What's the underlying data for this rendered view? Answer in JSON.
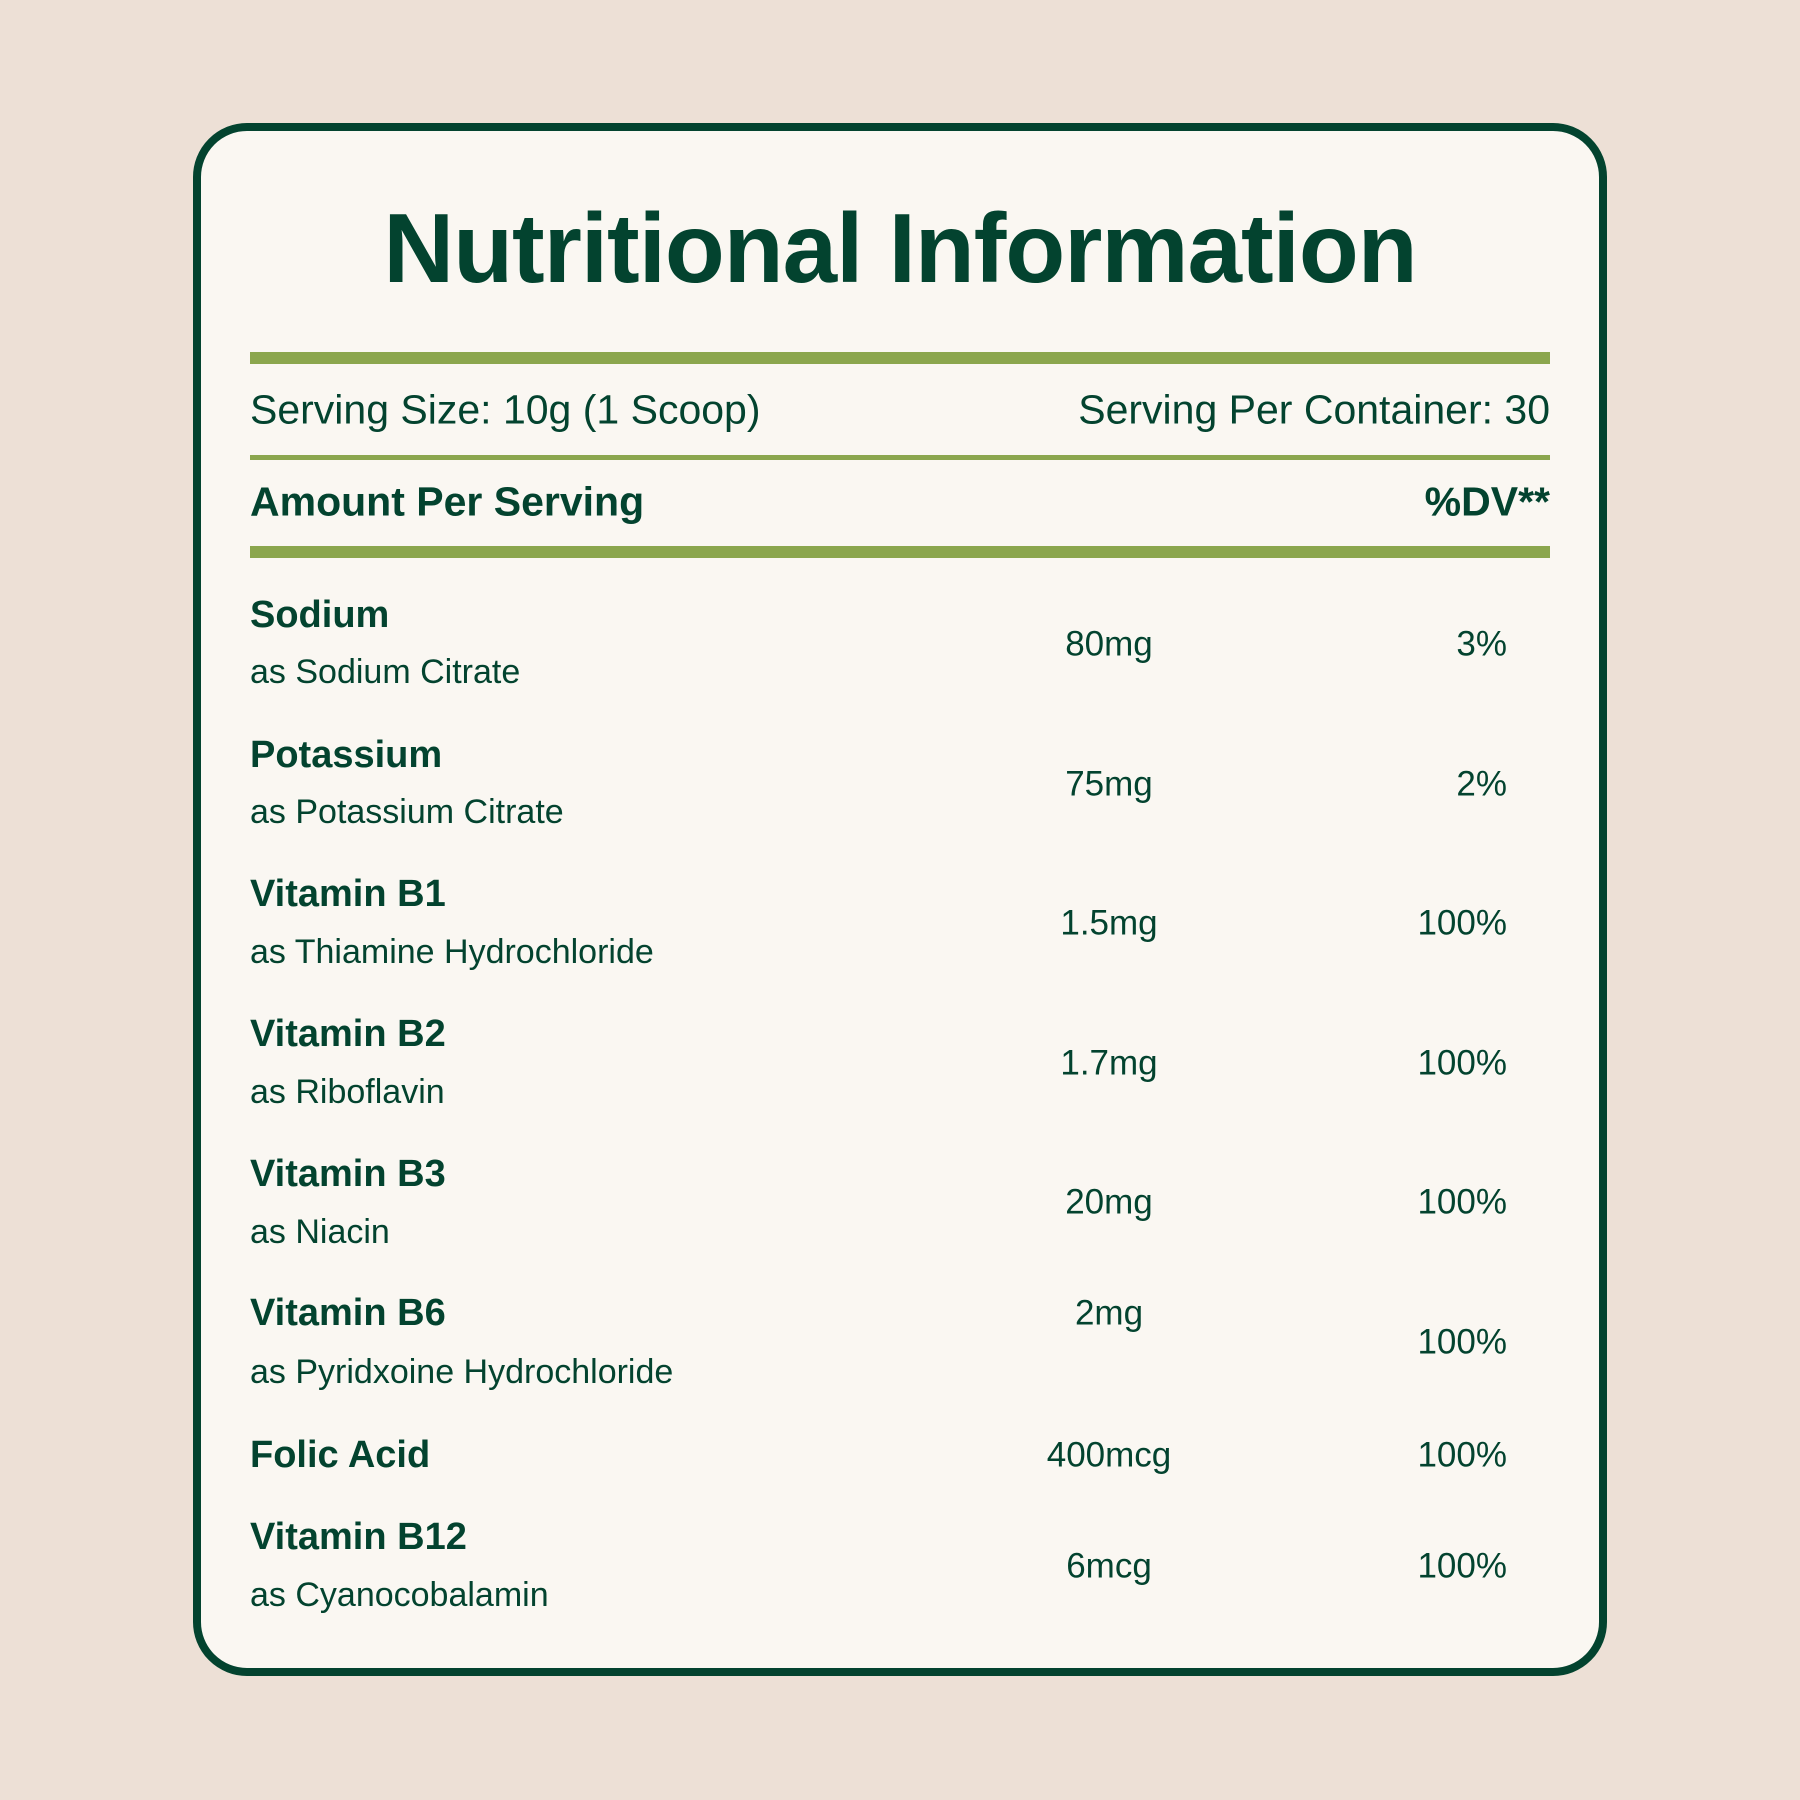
{
  "title": "Nutritional Information",
  "serving_size": "Serving Size: 10g (1 Scoop)",
  "servings_per_container": "Serving Per Container: 30",
  "amount_header": "Amount Per Serving",
  "dv_header": "%DV**",
  "nutrients": [
    {
      "name": "Sodium",
      "source": "as Sodium Citrate",
      "amount": "80mg",
      "dv": "3%"
    },
    {
      "name": "Potassium",
      "source": "as Potassium Citrate",
      "amount": "75mg",
      "dv": "2%"
    },
    {
      "name": "Vitamin B1",
      "source": "as Thiamine Hydrochloride",
      "amount": "1.5mg",
      "dv": "100%"
    },
    {
      "name": "Vitamin B2",
      "source": "as Riboflavin",
      "amount": "1.7mg",
      "dv": "100%"
    },
    {
      "name": "Vitamin B3",
      "source": "as Niacin",
      "amount": "20mg",
      "dv": "100%"
    },
    {
      "name": "Vitamin B6",
      "source": "as Pyridxoine Hydrochloride",
      "amount": "2mg",
      "dv": "100%"
    },
    {
      "name": "Folic Acid",
      "amount": "400mcg",
      "dv": "100%"
    },
    {
      "name": "Vitamin B12",
      "source": "as Cyanocobalamin",
      "amount": "6mcg",
      "dv": "100%"
    }
  ],
  "colors": {
    "background": "#ede0d6",
    "card": "#faf7f2",
    "text": "#03432f",
    "accent": "#8ba64e"
  }
}
